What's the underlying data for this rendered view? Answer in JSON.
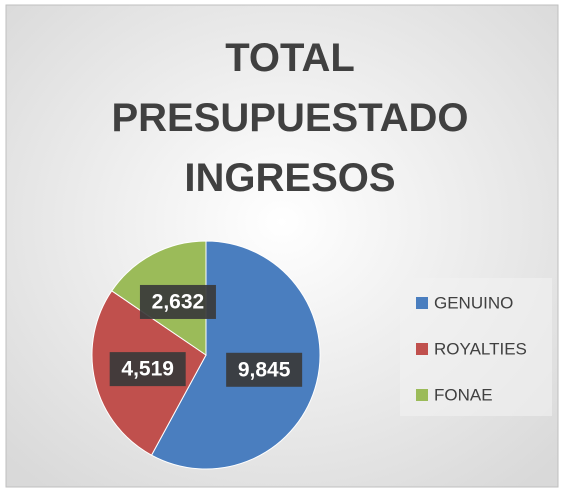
{
  "chart_data": {
    "type": "pie",
    "title": "TOTAL PRESUPUESTADO INGRESOS",
    "categories": [
      "GENUINO",
      "ROYALTIES",
      "FONAE"
    ],
    "values": [
      9845,
      4519,
      2632
    ],
    "value_labels": [
      "9,845",
      "4,519",
      "2,632"
    ],
    "colors": [
      "#4a7ebf",
      "#c0504d",
      "#9bbb59"
    ],
    "legend": "right"
  }
}
